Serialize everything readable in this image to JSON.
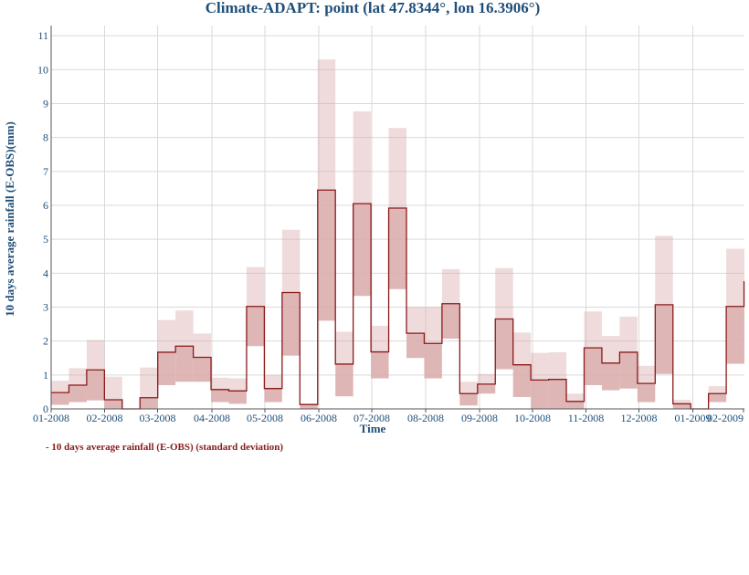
{
  "chart_data": {
    "type": "area",
    "title": "Climate-ADAPT: point (lat 47.8344°, lon 16.3906°)",
    "xlabel": "Time",
    "ylabel": "10 days average rainfall (E-OBS)(mm)",
    "ylim": [
      0,
      11.3
    ],
    "yticks": [
      0,
      1,
      2,
      3,
      4,
      5,
      6,
      7,
      8,
      9,
      10,
      11
    ],
    "xticks": [
      "01-2008",
      "02-2008",
      "03-2008",
      "04-2008",
      "05-2008",
      "06-2008",
      "07-2008",
      "08-2008",
      "09-2008",
      "10-2008",
      "11-2008",
      "12-2008",
      "01-2009",
      "02-2009"
    ],
    "grid": true,
    "series": [
      {
        "name": "10 days average rainfall (E-OBS) (standard deviation)",
        "type": "step",
        "color": "#8b1a1a",
        "band_color": "#d9a9a9",
        "values": [
          0.48,
          0.7,
          1.15,
          0.27,
          0.0,
          0.33,
          1.67,
          1.85,
          1.52,
          0.57,
          0.53,
          3.02,
          0.6,
          3.43,
          0.13,
          6.45,
          1.32,
          6.05,
          1.68,
          5.92,
          2.23,
          1.93,
          3.1,
          0.45,
          0.73,
          2.65,
          1.3,
          0.85,
          0.87,
          0.22,
          1.8,
          1.35,
          1.67,
          0.75,
          3.07,
          0.15,
          0.0,
          0.45,
          3.02,
          3.75
        ],
        "std_low": [
          0.12,
          0.2,
          0.25,
          0.0,
          0.0,
          0.0,
          0.7,
          0.8,
          0.8,
          0.2,
          0.15,
          1.85,
          0.2,
          1.57,
          0.0,
          2.6,
          0.37,
          3.33,
          0.9,
          3.53,
          1.5,
          0.9,
          2.07,
          0.1,
          0.45,
          1.17,
          0.35,
          0.0,
          0.0,
          0.0,
          0.7,
          0.55,
          0.6,
          0.2,
          1.03,
          0.0,
          0.0,
          0.2,
          1.33,
          1.33
        ],
        "std_high": [
          0.83,
          1.2,
          2.03,
          0.95,
          0.0,
          1.22,
          2.62,
          2.9,
          2.22,
          0.92,
          0.9,
          4.18,
          1.0,
          5.28,
          0.13,
          10.3,
          2.27,
          8.77,
          2.45,
          8.28,
          3.0,
          3.0,
          4.12,
          0.8,
          1.03,
          4.15,
          2.25,
          1.65,
          1.67,
          0.45,
          2.87,
          2.15,
          2.72,
          1.27,
          5.1,
          0.27,
          0.0,
          0.67,
          4.72,
          4.72
        ]
      }
    ]
  }
}
